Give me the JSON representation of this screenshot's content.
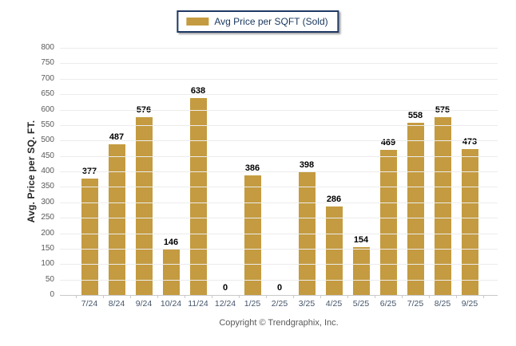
{
  "legend": {
    "label": "Avg Price per SQFT (Sold)",
    "swatch_color": "#C49B40"
  },
  "chart_data": {
    "type": "bar",
    "categories": [
      "7/24",
      "8/24",
      "9/24",
      "10/24",
      "11/24",
      "12/24",
      "1/25",
      "2/25",
      "3/25",
      "4/25",
      "5/25",
      "6/25",
      "7/25",
      "8/25",
      "9/25"
    ],
    "values": [
      377,
      487,
      576,
      146,
      638,
      0,
      386,
      0,
      398,
      286,
      154,
      469,
      558,
      575,
      473
    ],
    "title": "",
    "xlabel": "",
    "ylabel": "Avg. Price per SQ. FT.",
    "ylim": [
      0,
      800
    ],
    "ytick_step": 50,
    "bar_color": "#C49B40",
    "grid": true,
    "gridline_color": "#ECECEC",
    "axis_color": "#C9C9C9",
    "legend_position": "top"
  },
  "footer": {
    "copyright": "Copyright © Trendgraphix, Inc."
  }
}
